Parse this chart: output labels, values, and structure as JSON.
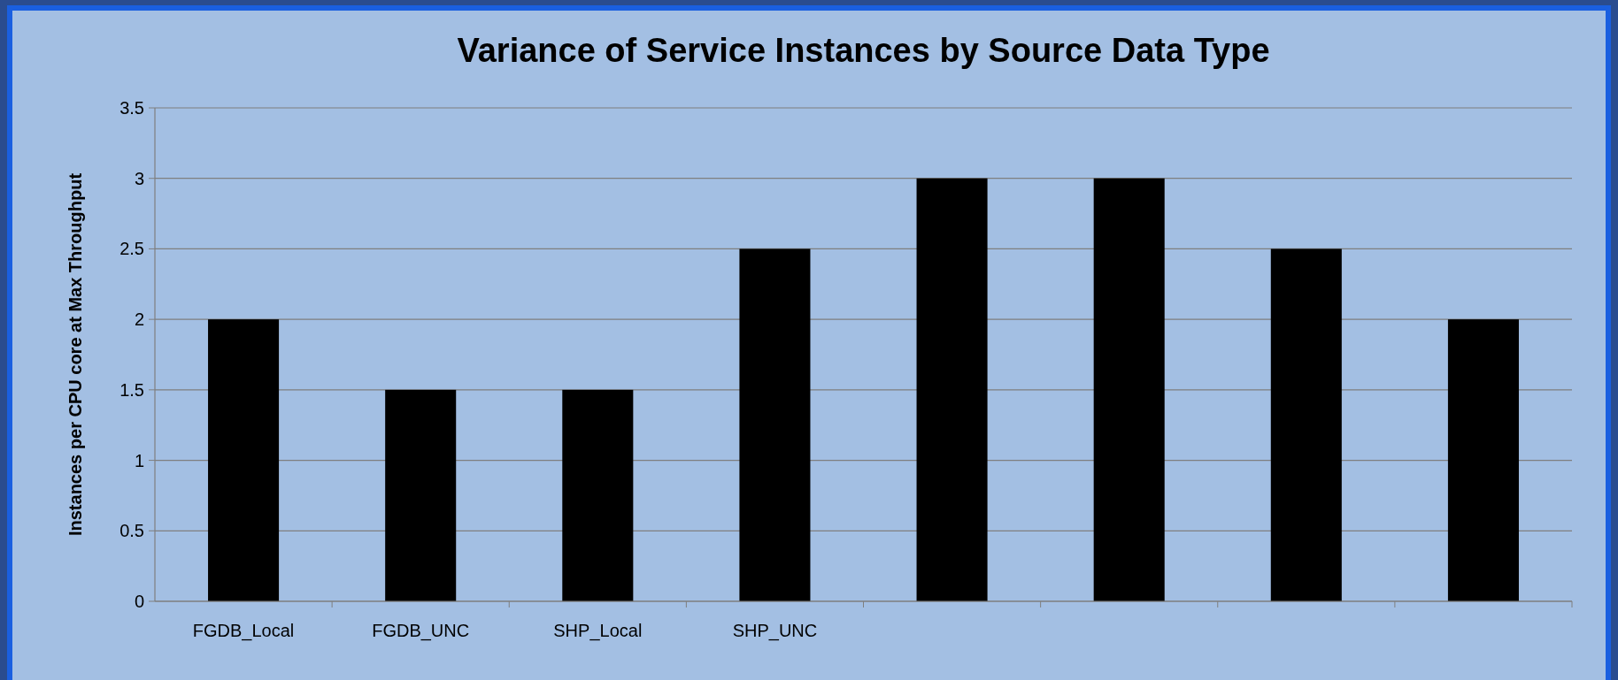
{
  "chart_data": {
    "type": "bar",
    "title": "Variance of Service Instances by Source Data Type",
    "ylabel": "Instances per CPU core at Max Throughput",
    "categories": [
      "FGDB_Local",
      "FGDB_UNC",
      "SHP_Local",
      "SHP_UNC",
      null,
      null,
      null,
      null
    ],
    "values": [
      2,
      1.5,
      1.5,
      2.5,
      3,
      3,
      2.5,
      2
    ],
    "color": "#000000",
    "ylim": [
      0,
      3.5
    ],
    "yticks": [
      0,
      0.5,
      1,
      1.5,
      2,
      2.5,
      3,
      3.5
    ],
    "grid": "y"
  }
}
